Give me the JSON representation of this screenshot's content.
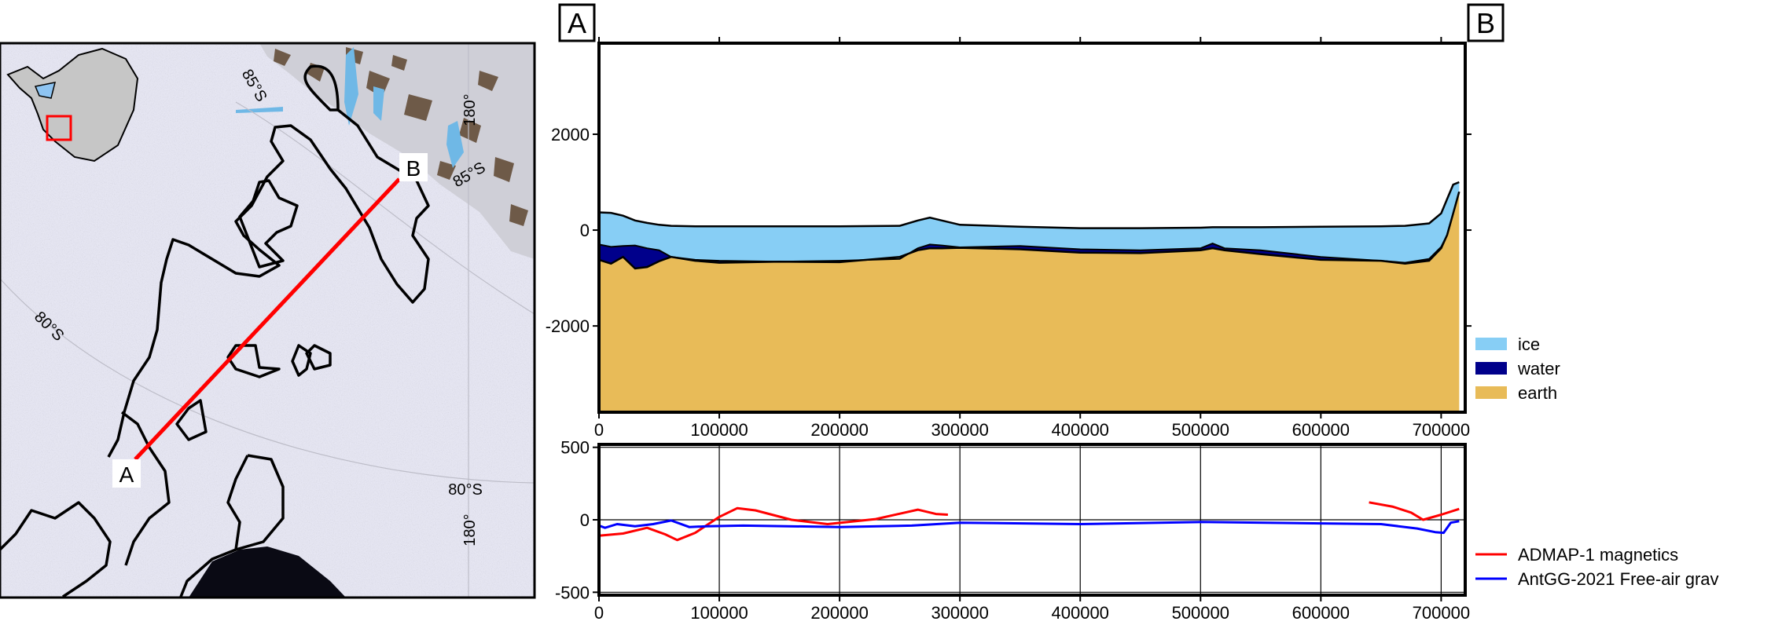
{
  "panel_labels": {
    "start": "A",
    "end": "B"
  },
  "map": {
    "graticule_labels": [
      {
        "text": "85°S",
        "rotate": 60
      },
      {
        "text": "180°",
        "rotate": -90
      },
      {
        "text": "85°S",
        "rotate": -30
      },
      {
        "text": "80°S",
        "rotate": 45
      },
      {
        "text": "80°S",
        "rotate": 0
      },
      {
        "text": "180°",
        "rotate": -90
      }
    ],
    "profile_color": "#ff0000",
    "inset_box_color": "#ff0000"
  },
  "chart_data": [
    {
      "type": "area",
      "xlim": [
        0,
        720000
      ],
      "ylim": [
        -3800,
        3900
      ],
      "x_ticks": [
        0,
        100000,
        200000,
        300000,
        400000,
        500000,
        600000,
        700000
      ],
      "x_tick_labels": [
        "0",
        "100000",
        "200000",
        "300000",
        "400000",
        "500000",
        "600000",
        "700000"
      ],
      "y_ticks": [
        2000,
        0,
        -2000
      ],
      "y_tick_labels": [
        "2000",
        "0",
        "-2000"
      ],
      "legend_placement": "right-bottom",
      "legend": [
        {
          "label": "ice",
          "color": "#87cef5"
        },
        {
          "label": "water",
          "color": "#00008b"
        },
        {
          "label": "earth",
          "color": "#e8bb58"
        }
      ],
      "x": [
        0,
        10000,
        20000,
        30000,
        40000,
        50000,
        60000,
        80000,
        100000,
        150000,
        200000,
        250000,
        265000,
        275000,
        285000,
        300000,
        350000,
        400000,
        450000,
        500000,
        510000,
        520000,
        550000,
        600000,
        650000,
        670000,
        690000,
        700000,
        705000,
        710000,
        715000
      ],
      "surface": [
        370,
        360,
        300,
        200,
        150,
        110,
        90,
        80,
        80,
        80,
        80,
        90,
        200,
        260,
        200,
        110,
        70,
        40,
        40,
        50,
        60,
        60,
        60,
        70,
        80,
        90,
        140,
        350,
        650,
        950,
        1000
      ],
      "ice_base": [
        -300,
        -350,
        -330,
        -320,
        -380,
        -420,
        -560,
        -620,
        -640,
        -660,
        -640,
        -600,
        -380,
        -300,
        -320,
        -360,
        -330,
        -400,
        -420,
        -380,
        -280,
        -380,
        -420,
        -560,
        -640,
        -680,
        -600,
        -350,
        -100,
        350,
        800
      ],
      "bed": [
        -620,
        -700,
        -560,
        -800,
        -770,
        -650,
        -560,
        -640,
        -680,
        -660,
        -670,
        -560,
        -420,
        -380,
        -380,
        -370,
        -400,
        -470,
        -480,
        -420,
        -380,
        -420,
        -500,
        -620,
        -640,
        -700,
        -640,
        -380,
        -100,
        350,
        800
      ]
    },
    {
      "type": "line",
      "xlim": [
        0,
        720000
      ],
      "ylim": [
        -520,
        520
      ],
      "x_ticks": [
        0,
        100000,
        200000,
        300000,
        400000,
        500000,
        600000,
        700000
      ],
      "x_tick_labels": [
        "0",
        "100000",
        "200000",
        "300000",
        "400000",
        "500000",
        "600000",
        "700000"
      ],
      "y_ticks": [
        500,
        0,
        -500
      ],
      "y_tick_labels": [
        "500",
        "0",
        "-500"
      ],
      "grid": true,
      "legend_placement": "right-bottom",
      "series": [
        {
          "name": "ADMAP-1 magnetics",
          "color": "#ff0000",
          "segments": [
            {
              "x": [
                0,
                20000,
                40000,
                55000,
                65000,
                80000,
                100000,
                115000,
                130000,
                160000,
                190000,
                230000,
                265000,
                280000,
                290000
              ],
              "y": [
                -110,
                -95,
                -55,
                -100,
                -140,
                -90,
                20,
                80,
                65,
                0,
                -30,
                5,
                70,
                40,
                35
              ]
            },
            {
              "x": [
                640000,
                660000,
                675000,
                685000,
                700000,
                715000
              ],
              "y": [
                120,
                90,
                50,
                0,
                35,
                75
              ]
            }
          ]
        },
        {
          "name": "AntGG-2021 Free-air grav",
          "color": "#0000ff",
          "segments": [
            {
              "x": [
                0,
                5000,
                15000,
                30000,
                45000,
                60000,
                75000,
                90000,
                120000,
                200000,
                260000,
                300000,
                400000,
                500000,
                600000,
                650000,
                680000,
                695000,
                702000,
                708000,
                715000
              ],
              "y": [
                -40,
                -55,
                -30,
                -45,
                -30,
                -5,
                -50,
                -45,
                -40,
                -50,
                -40,
                -20,
                -30,
                -15,
                -25,
                -30,
                -60,
                -85,
                -90,
                -20,
                -10
              ]
            }
          ]
        }
      ]
    }
  ]
}
